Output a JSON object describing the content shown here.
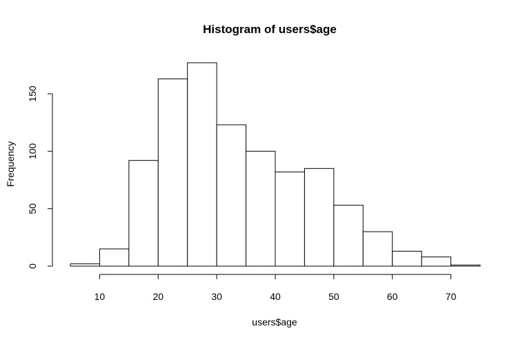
{
  "chart_data": {
    "type": "bar",
    "title": "Histogram of users$age",
    "xlabel": "users$age",
    "ylabel": "Frequency",
    "bins": [
      {
        "from": 5,
        "to": 10,
        "count": 2
      },
      {
        "from": 10,
        "to": 15,
        "count": 15
      },
      {
        "from": 15,
        "to": 20,
        "count": 92
      },
      {
        "from": 20,
        "to": 25,
        "count": 163
      },
      {
        "from": 25,
        "to": 30,
        "count": 177
      },
      {
        "from": 30,
        "to": 35,
        "count": 123
      },
      {
        "from": 35,
        "to": 40,
        "count": 100
      },
      {
        "from": 40,
        "to": 45,
        "count": 82
      },
      {
        "from": 45,
        "to": 50,
        "count": 85
      },
      {
        "from": 50,
        "to": 55,
        "count": 53
      },
      {
        "from": 55,
        "to": 60,
        "count": 30
      },
      {
        "from": 60,
        "to": 65,
        "count": 13
      },
      {
        "from": 65,
        "to": 70,
        "count": 8
      },
      {
        "from": 70,
        "to": 75,
        "count": 1
      }
    ],
    "xticks": [
      10,
      20,
      30,
      40,
      50,
      60,
      70
    ],
    "yticks": [
      0,
      50,
      100,
      150
    ],
    "xlim": [
      5,
      75
    ],
    "ylim": [
      0,
      177
    ],
    "grid": false,
    "bar_fill": "#ffffff",
    "bar_stroke": "#000000"
  }
}
